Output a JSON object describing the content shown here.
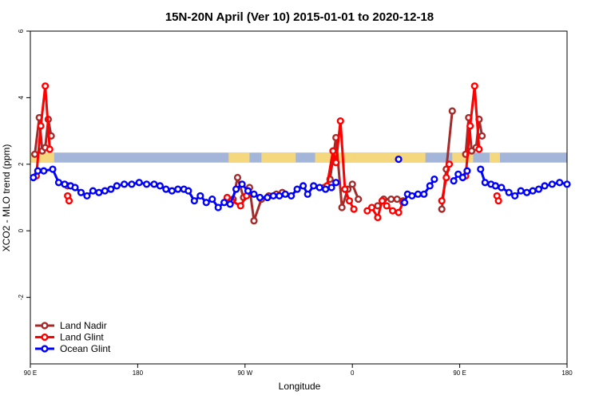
{
  "chart_data": {
    "type": "line",
    "title": "15N-20N April (Ver 10)   2015-01-01 to 2020-12-18",
    "xlabel": "Longitude",
    "ylabel": "XCO2 - MLO trend (ppm)",
    "xlim": [
      0,
      360
    ],
    "ylim": [
      -4,
      6
    ],
    "x_ticks": [
      {
        "value": 0,
        "label": "90 E"
      },
      {
        "value": 72,
        "label": "180"
      },
      {
        "value": 144,
        "label": "90 W"
      },
      {
        "value": 216,
        "label": "0"
      },
      {
        "value": 288,
        "label": "90 E"
      },
      {
        "value": 360,
        "label": "180"
      }
    ],
    "y_ticks": [
      {
        "value": -2,
        "label": "-2"
      },
      {
        "value": 0,
        "label": "0"
      },
      {
        "value": 2,
        "label": "2"
      },
      {
        "value": 4,
        "label": "4"
      },
      {
        "value": 6,
        "label": "6"
      }
    ],
    "grid": false,
    "legend_position": "bottom-left",
    "background_band": {
      "y_range": [
        2.05,
        2.35
      ],
      "color": "#a3b6d9",
      "land_color": "#f5d77e",
      "land_segments": [
        [
          0,
          16
        ],
        [
          133,
          147
        ],
        [
          155,
          178
        ],
        [
          191,
          217
        ],
        [
          217,
          265
        ],
        [
          283,
          297
        ],
        [
          308,
          315
        ]
      ]
    },
    "series": [
      {
        "name": "Land Nadir",
        "color": "#a52a2a",
        "segments": [
          [
            [
              3,
              2.3
            ],
            [
              6,
              3.4
            ],
            [
              8,
              2.4
            ],
            [
              10,
              2.5
            ],
            [
              12,
              3.35
            ],
            [
              14,
              2.85
            ]
          ],
          [
            [
              25,
              1.35
            ]
          ],
          [
            [
              136,
              0.95
            ],
            [
              139,
              1.6
            ],
            [
              143,
              1.0
            ],
            [
              147,
              1.3
            ],
            [
              150,
              0.3
            ],
            [
              155,
              0.95
            ],
            [
              160,
              1.05
            ],
            [
              165,
              1.1
            ],
            [
              169,
              1.15
            ]
          ],
          [
            [
              197,
              1.3
            ],
            [
              201,
              1.55
            ],
            [
              205,
              2.8
            ],
            [
              209,
              0.7
            ],
            [
              213,
              1.25
            ],
            [
              216,
              1.4
            ],
            [
              220,
              0.95
            ]
          ],
          [
            [
              233,
              0.75
            ],
            [
              237,
              0.95
            ],
            [
              242,
              0.95
            ],
            [
              246,
              0.95
            ],
            [
              250,
              0.9
            ]
          ],
          [
            [
              276,
              0.65
            ],
            [
              279,
              1.85
            ],
            [
              283,
              3.6
            ]
          ],
          [
            [
              292,
              2.3
            ],
            [
              294,
              3.4
            ],
            [
              296,
              2.4
            ],
            [
              299,
              2.5
            ],
            [
              301,
              3.35
            ],
            [
              303,
              2.85
            ]
          ],
          [
            [
              312,
              1.35
            ]
          ]
        ]
      },
      {
        "name": "Land Glint",
        "color": "#ff0000",
        "segments": [
          [
            [
              4,
              1.65
            ],
            [
              7,
              3.15
            ],
            [
              10,
              4.35
            ],
            [
              13,
              2.45
            ]
          ],
          [
            [
              25,
              1.05
            ],
            [
              26,
              0.9
            ]
          ],
          [
            [
              132,
              1.0
            ],
            [
              135,
              0.9
            ],
            [
              141,
              0.75
            ],
            [
              145,
              1.05
            ]
          ],
          [
            [
              199,
              1.35
            ],
            [
              203,
              2.4
            ],
            [
              205,
              2.05
            ],
            [
              208,
              3.3
            ],
            [
              211,
              1.25
            ],
            [
              214,
              0.9
            ],
            [
              217,
              0.65
            ]
          ],
          [
            [
              226,
              0.6
            ],
            [
              229,
              0.7
            ],
            [
              233,
              0.4
            ],
            [
              236,
              0.9
            ],
            [
              239,
              0.75
            ],
            [
              243,
              0.6
            ],
            [
              247,
              0.55
            ],
            [
              250,
              0.85
            ]
          ],
          [
            [
              276,
              0.9
            ],
            [
              279,
              1.6
            ],
            [
              281,
              2.0
            ]
          ],
          [
            [
              292,
              1.65
            ],
            [
              295,
              3.15
            ],
            [
              298,
              4.35
            ],
            [
              301,
              2.45
            ]
          ],
          [
            [
              313,
              1.05
            ],
            [
              314,
              0.9
            ]
          ]
        ]
      },
      {
        "name": "Ocean Glint",
        "color": "#0000ff",
        "segments": [
          [
            [
              2,
              1.6
            ],
            [
              5,
              1.8
            ],
            [
              9,
              1.8
            ],
            [
              15,
              1.85
            ],
            [
              19,
              1.45
            ],
            [
              23,
              1.4
            ],
            [
              27,
              1.35
            ],
            [
              30,
              1.3
            ],
            [
              34,
              1.15
            ],
            [
              38,
              1.05
            ],
            [
              42,
              1.2
            ],
            [
              46,
              1.15
            ],
            [
              50,
              1.2
            ],
            [
              54,
              1.25
            ],
            [
              58,
              1.35
            ],
            [
              63,
              1.4
            ],
            [
              68,
              1.4
            ],
            [
              73,
              1.45
            ],
            [
              78,
              1.4
            ],
            [
              83,
              1.4
            ],
            [
              87,
              1.35
            ],
            [
              91,
              1.25
            ],
            [
              95,
              1.2
            ],
            [
              99,
              1.25
            ],
            [
              103,
              1.25
            ],
            [
              106,
              1.2
            ],
            [
              110,
              0.9
            ],
            [
              114,
              1.05
            ],
            [
              118,
              0.85
            ],
            [
              122,
              0.95
            ],
            [
              126,
              0.7
            ],
            [
              130,
              0.85
            ],
            [
              134,
              0.8
            ],
            [
              138,
              1.25
            ],
            [
              142,
              1.4
            ],
            [
              146,
              1.2
            ],
            [
              150,
              1.1
            ],
            [
              154,
              1.0
            ],
            [
              159,
              1.0
            ],
            [
              163,
              1.05
            ],
            [
              167,
              1.05
            ],
            [
              171,
              1.1
            ],
            [
              175,
              1.05
            ],
            [
              179,
              1.25
            ],
            [
              183,
              1.35
            ],
            [
              186,
              1.1
            ],
            [
              190,
              1.35
            ],
            [
              194,
              1.3
            ],
            [
              198,
              1.25
            ],
            [
              202,
              1.3
            ],
            [
              205,
              1.45
            ]
          ],
          [
            [
              247,
              2.15
            ]
          ],
          [
            [
              251,
              0.85
            ],
            [
              253,
              1.1
            ],
            [
              256,
              1.05
            ],
            [
              260,
              1.1
            ],
            [
              264,
              1.1
            ],
            [
              268,
              1.35
            ],
            [
              271,
              1.55
            ]
          ],
          [
            [
              284,
              1.5
            ],
            [
              287,
              1.7
            ],
            [
              290,
              1.6
            ],
            [
              293,
              1.8
            ]
          ],
          [
            [
              302,
              1.85
            ],
            [
              305,
              1.45
            ],
            [
              309,
              1.4
            ],
            [
              312,
              1.35
            ],
            [
              316,
              1.3
            ],
            [
              321,
              1.15
            ],
            [
              325,
              1.05
            ],
            [
              329,
              1.2
            ],
            [
              333,
              1.15
            ],
            [
              337,
              1.2
            ],
            [
              341,
              1.25
            ],
            [
              345,
              1.35
            ],
            [
              350,
              1.4
            ],
            [
              355,
              1.45
            ],
            [
              360,
              1.4
            ]
          ]
        ]
      }
    ]
  }
}
